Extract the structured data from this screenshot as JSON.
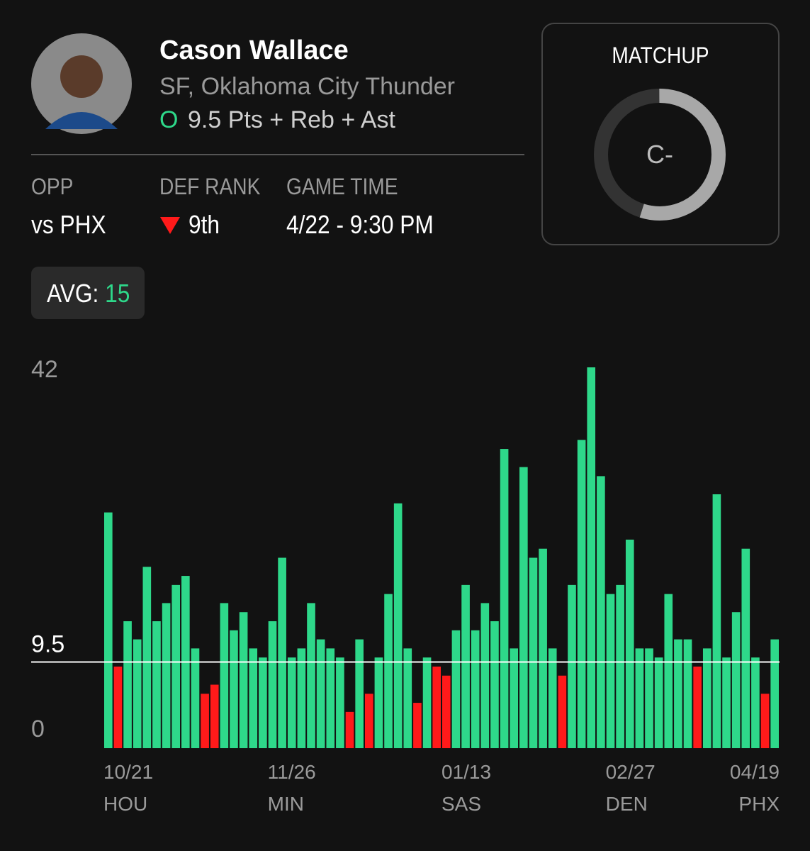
{
  "header": {
    "name": "Cason Wallace",
    "team": "SF, Oklahoma City Thunder",
    "pick": "O",
    "prop": "9.5 Pts + Reb + Ast"
  },
  "stats": [
    {
      "label": "OPP",
      "value": "vs PHX"
    },
    {
      "label": "DEF RANK",
      "value": "9th"
    },
    {
      "label": "GAME TIME",
      "value": "4/22 - 9:30 PM"
    }
  ],
  "matchup": {
    "title": "MATCHUP",
    "grade": "C-",
    "fill_percent": 55
  },
  "average": {
    "label": "AVG:",
    "value": 15
  },
  "chart_data": {
    "type": "bar",
    "ylim": [
      0,
      42
    ],
    "yticks": [
      0,
      42
    ],
    "threshold": 9.5,
    "over_color": "#2ed88a",
    "under_color": "#ff1a1a",
    "categories": [
      "10/21",
      null,
      null,
      null,
      null,
      null,
      null,
      null,
      null,
      null,
      null,
      null,
      null,
      null,
      null,
      null,
      null,
      "11/26",
      null,
      null,
      null,
      null,
      null,
      null,
      null,
      null,
      null,
      null,
      null,
      null,
      null,
      null,
      null,
      null,
      null,
      "01/13",
      null,
      null,
      null,
      null,
      null,
      null,
      null,
      null,
      null,
      null,
      null,
      null,
      null,
      null,
      null,
      null,
      "02/27",
      null,
      null,
      null,
      null,
      null,
      null,
      null,
      null,
      null,
      null,
      null,
      null,
      null,
      null,
      null,
      null,
      "04/19"
    ],
    "opponents": [
      "HOU",
      null,
      null,
      null,
      null,
      null,
      null,
      null,
      null,
      null,
      null,
      null,
      null,
      null,
      null,
      null,
      null,
      "MIN",
      null,
      null,
      null,
      null,
      null,
      null,
      null,
      null,
      null,
      null,
      null,
      null,
      null,
      null,
      null,
      null,
      null,
      "SAS",
      null,
      null,
      null,
      null,
      null,
      null,
      null,
      null,
      null,
      null,
      null,
      null,
      null,
      null,
      null,
      null,
      "DEN",
      null,
      null,
      null,
      null,
      null,
      null,
      null,
      null,
      null,
      null,
      null,
      null,
      null,
      null,
      null,
      null,
      "PHX"
    ],
    "values": [
      26,
      9,
      14,
      12,
      20,
      14,
      16,
      18,
      19,
      11,
      6,
      7,
      16,
      13,
      15,
      11,
      10,
      14,
      21,
      10,
      11,
      16,
      12,
      11,
      10,
      4,
      12,
      6,
      10,
      17,
      27,
      11,
      5,
      10,
      9,
      8,
      13,
      18,
      13,
      16,
      14,
      33,
      11,
      31,
      21,
      22,
      11,
      8,
      18,
      34,
      42,
      30,
      17,
      18,
      23,
      11,
      11,
      10,
      17,
      12,
      12,
      9,
      11,
      28,
      10,
      15,
      22,
      10,
      6,
      12
    ]
  }
}
